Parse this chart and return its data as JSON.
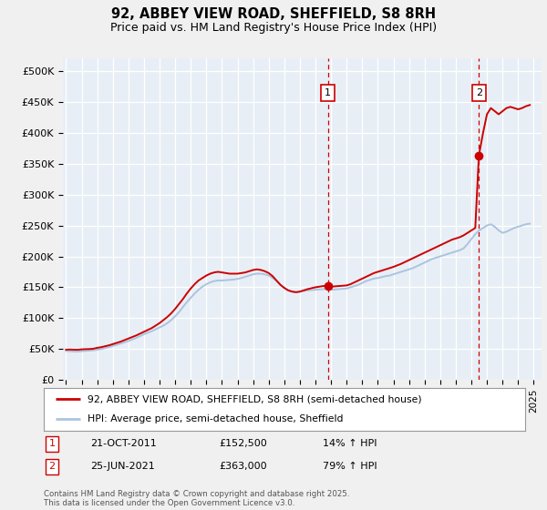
{
  "title": "92, ABBEY VIEW ROAD, SHEFFIELD, S8 8RH",
  "subtitle": "Price paid vs. HM Land Registry's House Price Index (HPI)",
  "background_color": "#f0f0f0",
  "plot_bg_color": "#e8eef5",
  "grid_color": "#ffffff",
  "red_line_color": "#cc0000",
  "blue_line_color": "#aac4e0",
  "vline_color": "#cc0000",
  "ylim": [
    0,
    520000
  ],
  "yticks": [
    0,
    50000,
    100000,
    150000,
    200000,
    250000,
    300000,
    350000,
    400000,
    450000,
    500000
  ],
  "ytick_labels": [
    "£0",
    "£50K",
    "£100K",
    "£150K",
    "£200K",
    "£250K",
    "£300K",
    "£350K",
    "£400K",
    "£450K",
    "£500K"
  ],
  "xmin_year": 1995,
  "xmax_year": 2025.5,
  "xticks": [
    1995,
    1996,
    1997,
    1998,
    1999,
    2000,
    2001,
    2002,
    2003,
    2004,
    2005,
    2006,
    2007,
    2008,
    2009,
    2010,
    2011,
    2012,
    2013,
    2014,
    2015,
    2016,
    2017,
    2018,
    2019,
    2020,
    2021,
    2022,
    2023,
    2024,
    2025
  ],
  "marker1_x": 2011.8,
  "marker1_y": 152500,
  "marker1_label": "1",
  "marker1_date": "21-OCT-2011",
  "marker1_price": "£152,500",
  "marker1_hpi": "14% ↑ HPI",
  "marker2_x": 2021.48,
  "marker2_y": 363000,
  "marker2_label": "2",
  "marker2_date": "25-JUN-2021",
  "marker2_price": "£363,000",
  "marker2_hpi": "79% ↑ HPI",
  "legend_label_red": "92, ABBEY VIEW ROAD, SHEFFIELD, S8 8RH (semi-detached house)",
  "legend_label_blue": "HPI: Average price, semi-detached house, Sheffield",
  "footer": "Contains HM Land Registry data © Crown copyright and database right 2025.\nThis data is licensed under the Open Government Licence v3.0.",
  "hpi_data_x": [
    1995.0,
    1995.25,
    1995.5,
    1995.75,
    1996.0,
    1996.25,
    1996.5,
    1996.75,
    1997.0,
    1997.25,
    1997.5,
    1997.75,
    1998.0,
    1998.25,
    1998.5,
    1998.75,
    1999.0,
    1999.25,
    1999.5,
    1999.75,
    2000.0,
    2000.25,
    2000.5,
    2000.75,
    2001.0,
    2001.25,
    2001.5,
    2001.75,
    2002.0,
    2002.25,
    2002.5,
    2002.75,
    2003.0,
    2003.25,
    2003.5,
    2003.75,
    2004.0,
    2004.25,
    2004.5,
    2004.75,
    2005.0,
    2005.25,
    2005.5,
    2005.75,
    2006.0,
    2006.25,
    2006.5,
    2006.75,
    2007.0,
    2007.25,
    2007.5,
    2007.75,
    2008.0,
    2008.25,
    2008.5,
    2008.75,
    2009.0,
    2009.25,
    2009.5,
    2009.75,
    2010.0,
    2010.25,
    2010.5,
    2010.75,
    2011.0,
    2011.25,
    2011.5,
    2011.75,
    2012.0,
    2012.25,
    2012.5,
    2012.75,
    2013.0,
    2013.25,
    2013.5,
    2013.75,
    2014.0,
    2014.25,
    2014.5,
    2014.75,
    2015.0,
    2015.25,
    2015.5,
    2015.75,
    2016.0,
    2016.25,
    2016.5,
    2016.75,
    2017.0,
    2017.25,
    2017.5,
    2017.75,
    2018.0,
    2018.25,
    2018.5,
    2018.75,
    2019.0,
    2019.25,
    2019.5,
    2019.75,
    2020.0,
    2020.25,
    2020.5,
    2020.75,
    2021.0,
    2021.25,
    2021.5,
    2021.75,
    2022.0,
    2022.25,
    2022.5,
    2022.75,
    2023.0,
    2023.25,
    2023.5,
    2023.75,
    2024.0,
    2024.25,
    2024.5,
    2024.75
  ],
  "hpi_data_y": [
    47000,
    46500,
    46000,
    45800,
    46500,
    47000,
    47500,
    48000,
    49000,
    50000,
    51500,
    53000,
    55000,
    57000,
    59000,
    61000,
    63000,
    65500,
    68000,
    71000,
    74000,
    76500,
    79000,
    82000,
    85000,
    88000,
    92000,
    97000,
    103000,
    110000,
    118000,
    126000,
    133000,
    140000,
    146000,
    151000,
    155000,
    158000,
    160000,
    161000,
    161000,
    161500,
    162000,
    162500,
    163500,
    165000,
    167000,
    169000,
    171000,
    172000,
    172000,
    171000,
    169000,
    165000,
    160000,
    154000,
    149000,
    145000,
    143000,
    142000,
    143000,
    144000,
    145000,
    145500,
    146000,
    146500,
    147000,
    147000,
    146000,
    146500,
    147000,
    147500,
    148000,
    150000,
    152000,
    154000,
    157000,
    160000,
    162000,
    164000,
    165000,
    166500,
    168000,
    169000,
    171000,
    173000,
    175000,
    177000,
    179000,
    181000,
    184000,
    187000,
    190000,
    193000,
    196000,
    198000,
    200000,
    202000,
    204000,
    206000,
    208000,
    210000,
    213000,
    220000,
    228000,
    236000,
    242000,
    246000,
    250000,
    252000,
    248000,
    242000,
    238000,
    240000,
    243000,
    246000,
    248000,
    250000,
    252000,
    253000
  ],
  "red_data_x": [
    1995.0,
    1995.25,
    1995.5,
    1995.75,
    1996.0,
    1996.25,
    1996.5,
    1996.75,
    1997.0,
    1997.25,
    1997.5,
    1997.75,
    1998.0,
    1998.25,
    1998.5,
    1998.75,
    1999.0,
    1999.25,
    1999.5,
    1999.75,
    2000.0,
    2000.25,
    2000.5,
    2000.75,
    2001.0,
    2001.25,
    2001.5,
    2001.75,
    2002.0,
    2002.25,
    2002.5,
    2002.75,
    2003.0,
    2003.25,
    2003.5,
    2003.75,
    2004.0,
    2004.25,
    2004.5,
    2004.75,
    2005.0,
    2005.25,
    2005.5,
    2005.75,
    2006.0,
    2006.25,
    2006.5,
    2006.75,
    2007.0,
    2007.25,
    2007.5,
    2007.75,
    2008.0,
    2008.25,
    2008.5,
    2008.75,
    2009.0,
    2009.25,
    2009.5,
    2009.75,
    2010.0,
    2010.25,
    2010.5,
    2010.75,
    2011.0,
    2011.25,
    2011.5,
    2011.75,
    2012.0,
    2012.25,
    2012.5,
    2012.75,
    2013.0,
    2013.25,
    2013.5,
    2013.75,
    2014.0,
    2014.25,
    2014.5,
    2014.75,
    2015.0,
    2015.25,
    2015.5,
    2015.75,
    2016.0,
    2016.25,
    2016.5,
    2016.75,
    2017.0,
    2017.25,
    2017.5,
    2017.75,
    2018.0,
    2018.25,
    2018.5,
    2018.75,
    2019.0,
    2019.25,
    2019.5,
    2019.75,
    2020.0,
    2020.25,
    2020.5,
    2020.75,
    2021.0,
    2021.25,
    2021.48,
    2021.75,
    2022.0,
    2022.25,
    2022.5,
    2022.75,
    2023.0,
    2023.25,
    2023.5,
    2023.75,
    2024.0,
    2024.25,
    2024.5,
    2024.75
  ],
  "red_data_y": [
    49000,
    49200,
    49000,
    48800,
    49500,
    49800,
    50000,
    50500,
    52000,
    53000,
    54500,
    56000,
    58000,
    60000,
    62000,
    64500,
    67000,
    69500,
    72000,
    75000,
    78000,
    81000,
    84000,
    88000,
    92000,
    97000,
    102000,
    108000,
    115000,
    123000,
    131000,
    140000,
    148000,
    155000,
    161000,
    165000,
    169000,
    172000,
    174000,
    175000,
    174000,
    173000,
    172000,
    172000,
    172000,
    173000,
    174000,
    176000,
    178000,
    179000,
    178000,
    176000,
    173000,
    168000,
    161000,
    154000,
    149000,
    145000,
    143000,
    142000,
    143000,
    145000,
    147000,
    148500,
    150000,
    151000,
    152000,
    152500,
    151000,
    151500,
    152000,
    152500,
    153000,
    155000,
    158000,
    161000,
    164000,
    167000,
    170000,
    173000,
    175000,
    177000,
    179000,
    181000,
    183000,
    185500,
    188000,
    191000,
    194000,
    197000,
    200000,
    203000,
    206000,
    209000,
    212000,
    215000,
    218000,
    221000,
    224000,
    227000,
    229000,
    231000,
    234000,
    238000,
    242000,
    246000,
    363000,
    400000,
    430000,
    440000,
    435000,
    430000,
    435000,
    440000,
    442000,
    440000,
    438000,
    440000,
    443000,
    445000
  ]
}
